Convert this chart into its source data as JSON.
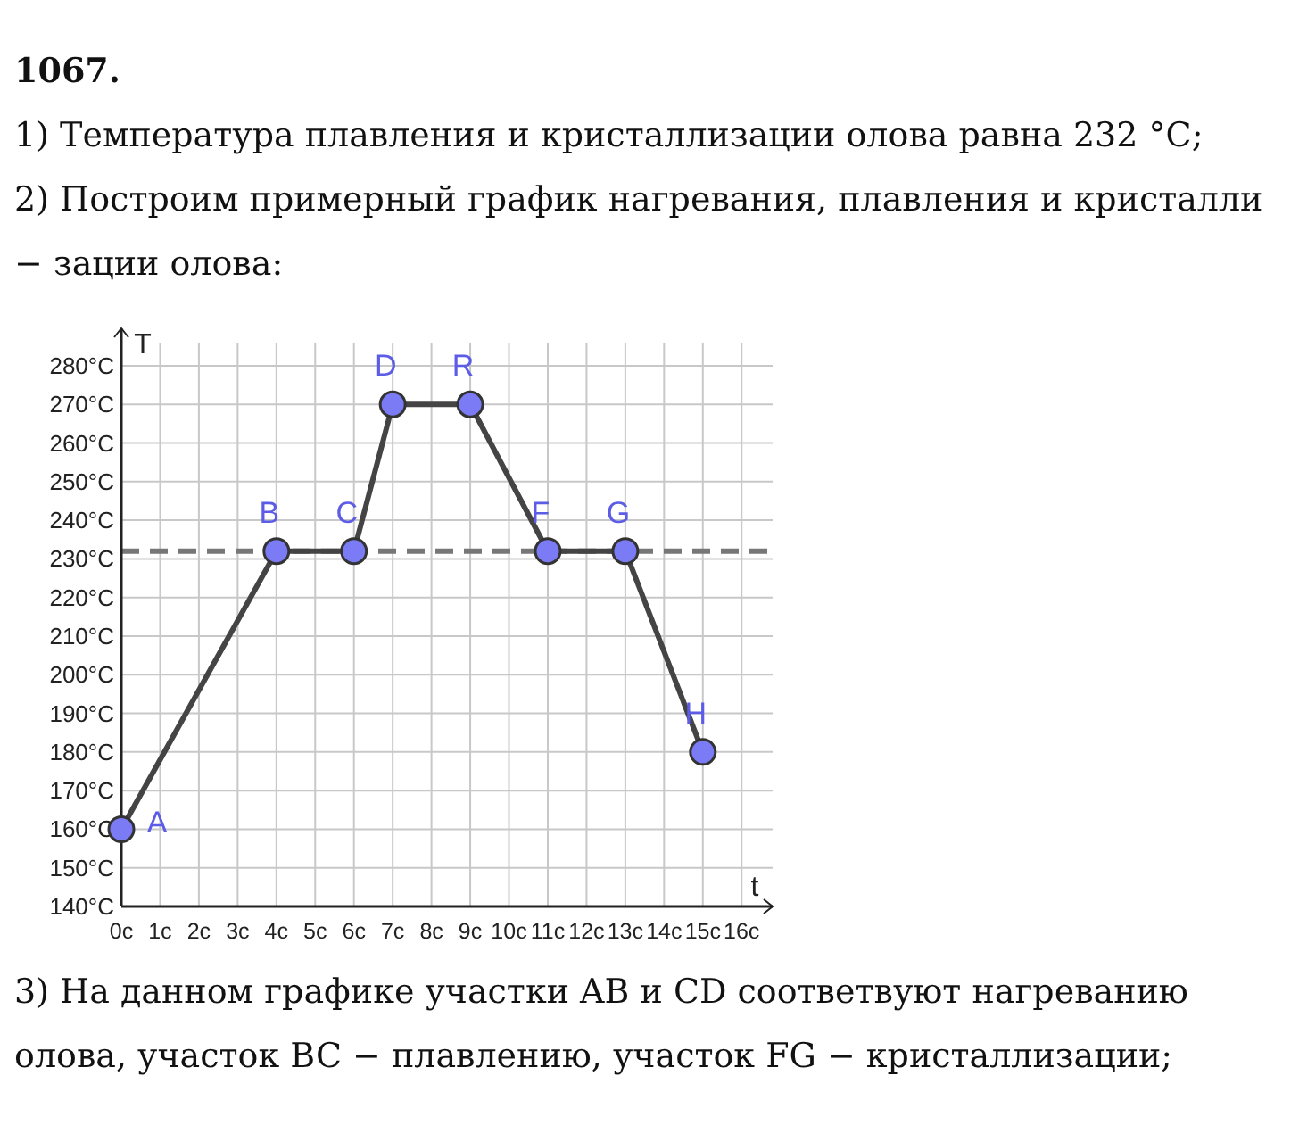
{
  "chart_data": {
    "type": "line",
    "title": "1067.",
    "subtitle": "1) Температура плавления и кристаллизации олова равна 232 °C;",
    "annotations": [
      "2) Построим примерный график нагревания, плавления и кристалли − зации олова:",
      {
        "text": "A",
        "x": 0,
        "y": 160
      },
      {
        "text": "B",
        "x": 4,
        "y": 232
      },
      {
        "text": "C",
        "x": 6,
        "y": 232
      },
      {
        "text": "D",
        "x": 7,
        "y": 270
      },
      {
        "text": "R",
        "x": 9,
        "y": 270
      },
      {
        "text": "F",
        "x": 11,
        "y": 232
      },
      {
        "text": "G",
        "x": 13,
        "y": 232
      },
      {
        "text": "H",
        "x": 15,
        "y": 180
      },
      "3) На данном графике участки AB и CD соответвуют нагреванию олова, участок BC − плавлению, участок FG − кристаллизации;"
    ],
    "xlabel": "t",
    "ylabel": "T",
    "x": [
      0,
      4,
      6,
      7,
      9,
      11,
      13,
      15
    ],
    "series": [
      {
        "color": "#444444",
        "values": [
          160,
          232,
          232,
          270,
          270,
          232,
          232,
          180
        ]
      }
    ],
    "marker": "circle",
    "grid": true,
    "xlim": [
      0,
      16.8
    ],
    "xticks": [
      {
        "value": 0,
        "label": "0c"
      },
      {
        "value": 1,
        "label": "1c"
      },
      {
        "value": 2,
        "label": "2c"
      },
      {
        "value": 3,
        "label": "3c"
      },
      {
        "value": 4,
        "label": "4c"
      },
      {
        "value": 5,
        "label": "5c"
      },
      {
        "value": 6,
        "label": "6c"
      },
      {
        "value": 7,
        "label": "7c"
      },
      {
        "value": 8,
        "label": "8c"
      },
      {
        "value": 9,
        "label": "9c"
      },
      {
        "value": 10,
        "label": "10c"
      },
      {
        "value": 11,
        "label": "11c"
      },
      {
        "value": 12,
        "label": "12c"
      },
      {
        "value": 13,
        "label": "13c"
      },
      {
        "value": 14,
        "label": "14c"
      },
      {
        "value": 15,
        "label": "15c"
      },
      {
        "value": 16,
        "label": "16c"
      }
    ],
    "ylim": [
      140,
      286
    ],
    "yticks": [
      {
        "value": 140,
        "label": "140°C"
      },
      {
        "value": 150,
        "label": "150°C"
      },
      {
        "value": 160,
        "label": "160°C"
      },
      {
        "value": 170,
        "label": "170°C"
      },
      {
        "value": 180,
        "label": "180°C"
      },
      {
        "value": 190,
        "label": "190°C"
      },
      {
        "value": 200,
        "label": "200°C"
      },
      {
        "value": 210,
        "label": "210°C"
      },
      {
        "value": 220,
        "label": "220°C"
      },
      {
        "value": 230,
        "label": "230°C"
      },
      {
        "value": 240,
        "label": "240°C"
      },
      {
        "value": 250,
        "label": "250°C"
      },
      {
        "value": 260,
        "label": "260°C"
      },
      {
        "value": 270,
        "label": "270°C"
      },
      {
        "value": 280,
        "label": "280°C"
      }
    ],
    "ref_lines": [
      {
        "axis": "y",
        "value": 232,
        "color": "#777777",
        "line_style": "dashed"
      }
    ]
  }
}
